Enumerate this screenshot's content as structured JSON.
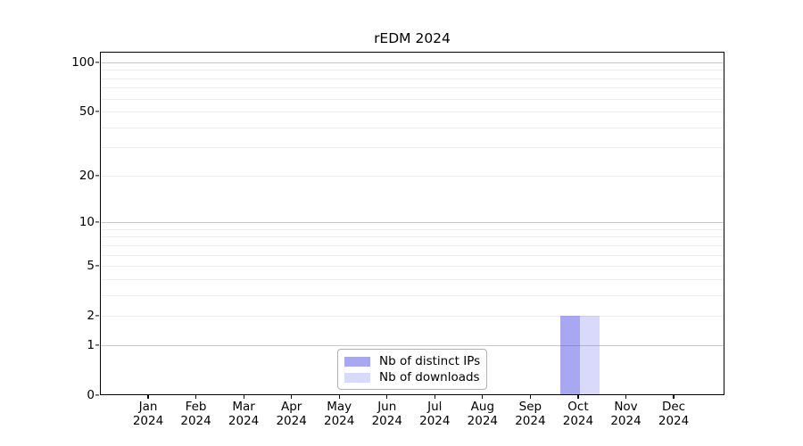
{
  "chart_data": {
    "type": "bar",
    "title": "rEDM 2024",
    "x_categories": [
      "Jan 2024",
      "Feb 2024",
      "Mar 2024",
      "Apr 2024",
      "May 2024",
      "Jun 2024",
      "Jul 2024",
      "Aug 2024",
      "Sep 2024",
      "Oct 2024",
      "Nov 2024",
      "Dec 2024"
    ],
    "series": [
      {
        "name": "Nb of distinct IPs",
        "color": "#5050e6",
        "alpha": 0.5,
        "values": [
          0,
          0,
          0,
          0,
          0,
          0,
          0,
          0,
          0,
          2,
          0,
          0
        ]
      },
      {
        "name": "Nb of downloads",
        "color": "#5050e6",
        "alpha": 0.22,
        "values": [
          0,
          0,
          0,
          0,
          0,
          0,
          0,
          0,
          0,
          2,
          0,
          0
        ]
      }
    ],
    "yaxis": {
      "scale": "log1p",
      "ticks": [
        0,
        1,
        2,
        5,
        10,
        20,
        50,
        100
      ],
      "ylim": [
        0,
        116
      ]
    },
    "grid": {
      "major_values": [
        1,
        10,
        100
      ],
      "minor_values": [
        2,
        3,
        4,
        5,
        6,
        7,
        8,
        9,
        20,
        30,
        40,
        50,
        60,
        70,
        80,
        90
      ],
      "major_color": "#c9c9c9",
      "minor_color": "#ededed"
    },
    "legend": {
      "position": "lower-center",
      "entries": [
        {
          "label": "Nb of distinct IPs",
          "color": "#5050e6",
          "alpha": 0.5
        },
        {
          "label": "Nb of downloads",
          "color": "#5050e6",
          "alpha": 0.22
        }
      ]
    },
    "frame_color": "#000000",
    "background_color": "#ffffff"
  }
}
